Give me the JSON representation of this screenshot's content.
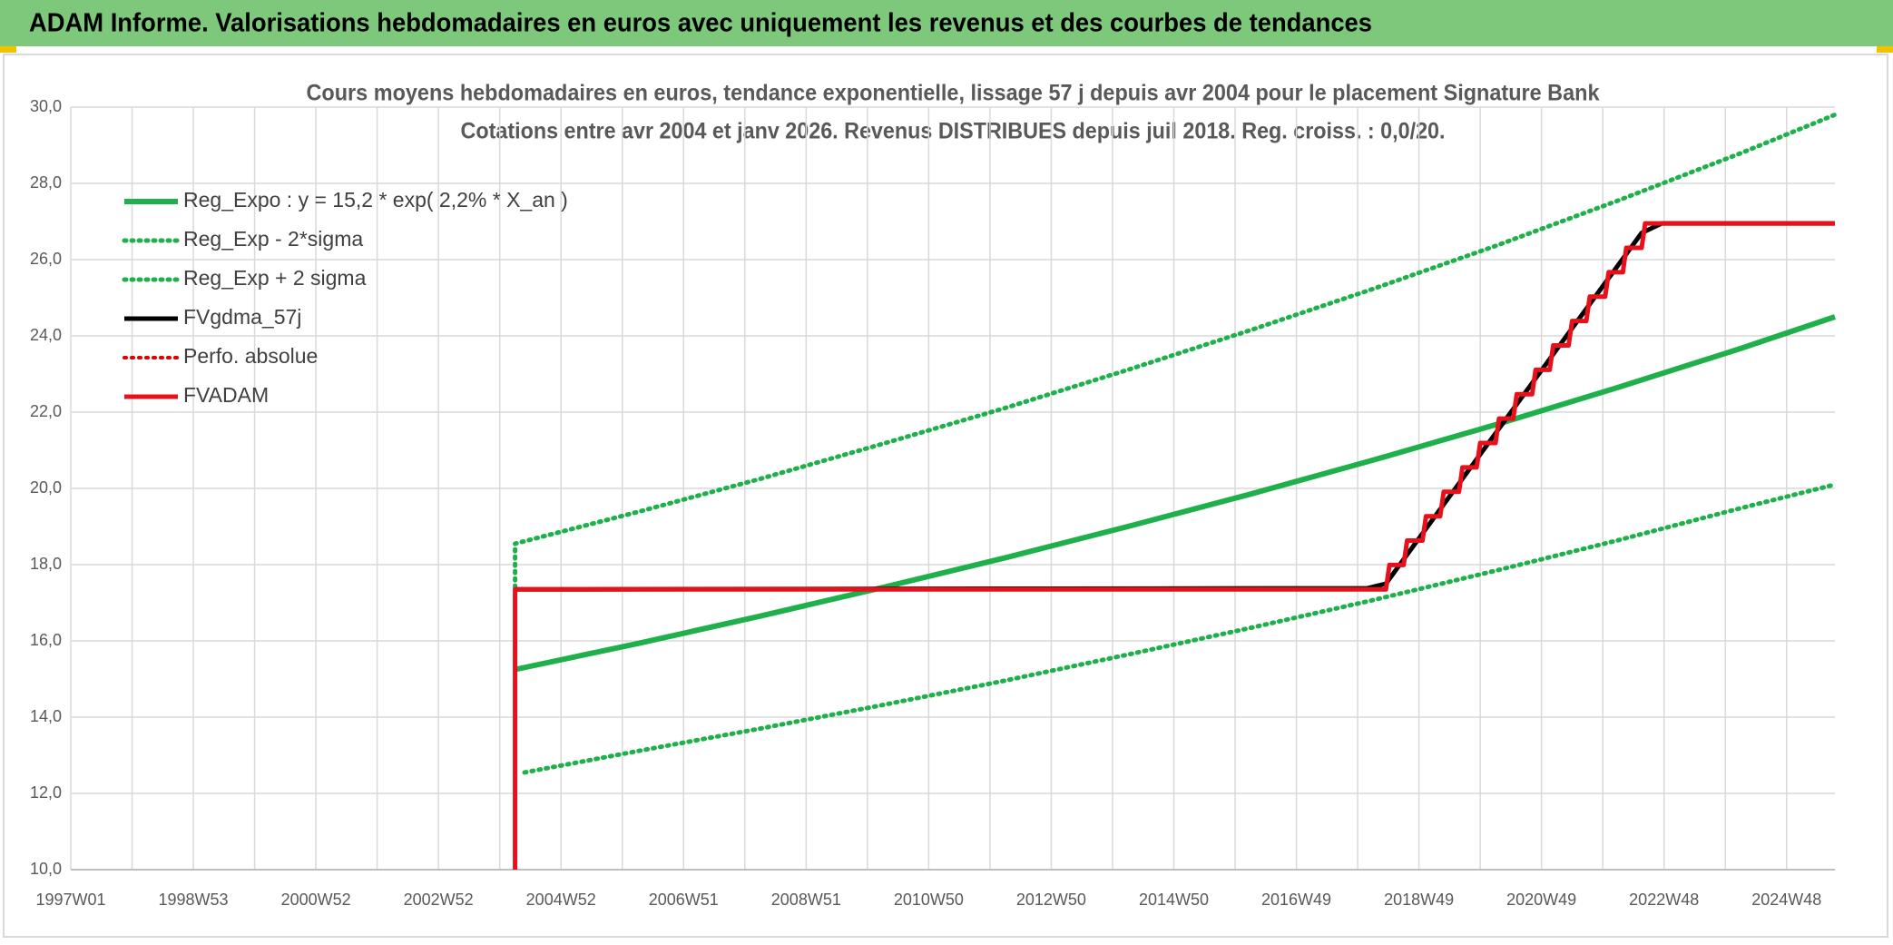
{
  "header": {
    "title": "ADAM Informe. Valorisations hebdomadaires en euros avec uniquement les revenus et des courbes de tendances"
  },
  "chart_data": {
    "type": "line",
    "title": "Cours moyens hebdomadaires en euros, tendance exponentielle, lissage 57 j depuis avr 2004 pour le placement Signature Bank",
    "subtitle": "Cotations entre avr 2004 et janv 2026. Revenus DISTRIBUES depuis juil 2018. Reg. croiss. : 0,0/20.",
    "xlim": [
      0,
      1497
    ],
    "ylim": [
      10,
      30
    ],
    "xticks": [
      {
        "value": 0,
        "label": "1997W01"
      },
      {
        "value": 104,
        "label": "1998W53"
      },
      {
        "value": 208,
        "label": "2000W52"
      },
      {
        "value": 312,
        "label": "2002W52"
      },
      {
        "value": 416,
        "label": "2004W52"
      },
      {
        "value": 520,
        "label": "2006W51"
      },
      {
        "value": 624,
        "label": "2008W51"
      },
      {
        "value": 728,
        "label": "2010W50"
      },
      {
        "value": 832,
        "label": "2012W50"
      },
      {
        "value": 936,
        "label": "2014W50"
      },
      {
        "value": 1040,
        "label": "2016W49"
      },
      {
        "value": 1144,
        "label": "2018W49"
      },
      {
        "value": 1248,
        "label": "2020W49"
      },
      {
        "value": 1352,
        "label": "2022W48"
      },
      {
        "value": 1456,
        "label": "2024W48"
      }
    ],
    "yticks": [
      {
        "value": 10,
        "label": "10,0"
      },
      {
        "value": 12,
        "label": "12,0"
      },
      {
        "value": 14,
        "label": "14,0"
      },
      {
        "value": 16,
        "label": "16,0"
      },
      {
        "value": 18,
        "label": "18,0"
      },
      {
        "value": 20,
        "label": "20,0"
      },
      {
        "value": 22,
        "label": "22,0"
      },
      {
        "value": 24,
        "label": "24,0"
      },
      {
        "value": 26,
        "label": "26,0"
      },
      {
        "value": 28,
        "label": "28,0"
      },
      {
        "value": 30,
        "label": "30,0"
      }
    ],
    "grid": true,
    "legend": "upper left",
    "series": [
      {
        "name": "Reg_Expo : y = 15,2 * exp( 2,2% *  X_an )",
        "color": "#1fb04c",
        "dash": false,
        "width": 6,
        "x": [
          377,
          481,
          585,
          689,
          793,
          897,
          1001,
          1105,
          1209,
          1313,
          1417,
          1497
        ],
        "values": [
          15.25,
          15.93,
          16.65,
          17.4,
          18.18,
          19.0,
          19.85,
          20.74,
          21.67,
          22.65,
          23.67,
          24.5
        ]
      },
      {
        "name": "Reg_Exp - 2*sigma",
        "color": "#1fb04c",
        "dash": true,
        "width": 5,
        "x": [
          385,
          481,
          585,
          689,
          793,
          897,
          1001,
          1105,
          1209,
          1313,
          1417,
          1497
        ],
        "values": [
          12.55,
          13.11,
          13.7,
          14.32,
          14.96,
          15.64,
          16.34,
          17.07,
          17.84,
          18.64,
          19.48,
          20.1
        ]
      },
      {
        "name": "Reg_Exp + 2 sigma",
        "color": "#1fb04c",
        "dash": true,
        "width": 5,
        "x": [
          377,
          377,
          481,
          585,
          689,
          793,
          897,
          1001,
          1105,
          1209,
          1313,
          1417,
          1497
        ],
        "values": [
          17.4,
          18.55,
          19.38,
          20.25,
          21.17,
          22.11,
          23.11,
          24.15,
          25.23,
          26.36,
          27.55,
          28.79,
          29.8
        ]
      },
      {
        "name": "FVgdma_57j",
        "color": "#000000",
        "dash": false,
        "width": 5,
        "x": [
          377,
          1100,
          1116,
          1333,
          1350,
          1497
        ],
        "values": [
          17.35,
          17.38,
          17.5,
          26.7,
          26.95,
          26.95
        ]
      },
      {
        "name": "Perfo. absolue",
        "color": "#e00000",
        "dash": true,
        "width": 4,
        "x": [
          377,
          1116
        ],
        "values": [
          17.35,
          17.35
        ]
      },
      {
        "name": "FVADAM",
        "color": "#e8101a",
        "dash": false,
        "width": 5,
        "x": [
          377,
          377,
          1116,
          1119,
          1131,
          1134,
          1147,
          1150,
          1162,
          1165,
          1178,
          1181,
          1193,
          1196,
          1209,
          1212,
          1224,
          1227,
          1240,
          1243,
          1255,
          1258,
          1271,
          1274,
          1286,
          1289,
          1302,
          1305,
          1317,
          1320,
          1333,
          1336,
          1497
        ],
        "values": [
          10,
          17.35,
          17.35,
          17.99,
          17.99,
          18.63,
          18.63,
          19.27,
          19.27,
          19.91,
          19.91,
          20.55,
          20.55,
          21.19,
          21.19,
          21.83,
          21.83,
          22.47,
          22.47,
          23.11,
          23.11,
          23.75,
          23.75,
          24.39,
          24.39,
          25.03,
          25.03,
          25.67,
          25.67,
          26.31,
          26.31,
          26.95,
          26.95
        ]
      }
    ]
  }
}
